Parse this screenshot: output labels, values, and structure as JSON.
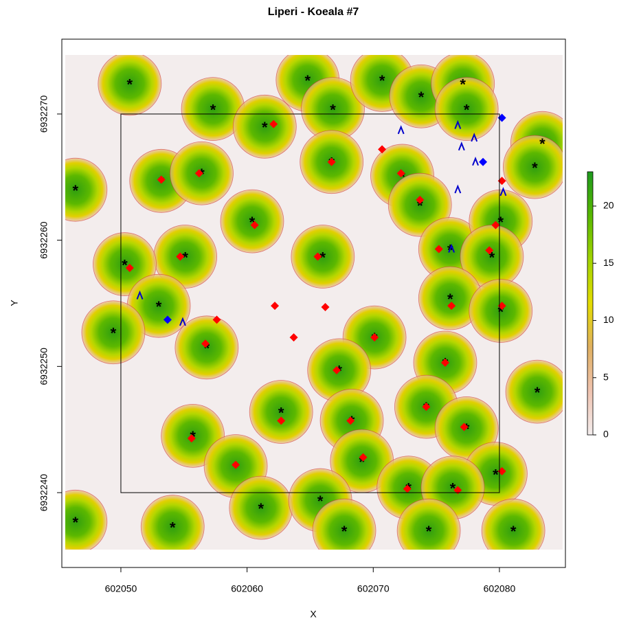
{
  "chart_data": {
    "type": "scatter",
    "title": "Liperi - Koeala #7",
    "x_label": "X",
    "y_label": "Y",
    "xlim": [
      602045.32,
      602085.23
    ],
    "ylim": [
      6932234.07,
      6932275.93
    ],
    "xticks": [
      602050,
      602060,
      602070,
      602080
    ],
    "yticks": [
      6932240,
      6932250,
      6932260,
      6932270
    ],
    "boundary": {
      "x": [
        602050,
        602080
      ],
      "y": [
        6932240,
        6932270
      ]
    },
    "colorbar": {
      "zlim": [
        0,
        23
      ],
      "ticks": [
        0,
        5,
        10,
        15,
        20
      ],
      "colors": [
        "#f3eded",
        "#efc3b0",
        "#e0b060",
        "#e4dc00",
        "#a2d400",
        "#58b800",
        "#1e9a1e"
      ]
    },
    "series": [
      {
        "marker": "asterisk",
        "color": "#000000",
        "x": [
          602050.7,
          602046.4,
          602057.3,
          602061.4,
          602064.8,
          602066.8,
          602070.7,
          602073.8,
          602077.1,
          602077.4,
          602083.4,
          602082.8,
          602053.2,
          602056.4,
          602060.4,
          602055.1,
          602050.3,
          602053.0,
          602049.4,
          602056.8,
          602066.0,
          602066.7,
          602072.3,
          602073.7,
          602076.1,
          602080.1,
          602079.4,
          602076.1,
          602080.1,
          602070.1,
          602067.3,
          602075.7,
          602083.0,
          602062.7,
          602055.7,
          602059.1,
          602068.3,
          602074.2,
          602077.4,
          602069.1,
          602079.7,
          602072.8,
          602076.3,
          602046.4,
          602054.1,
          602061.1,
          602065.8,
          602067.7,
          602074.4,
          602081.1
        ],
        "values": [
          6932272.4,
          6932264.0,
          6932270.4,
          6932269.0,
          6932272.7,
          6932270.4,
          6932272.7,
          6932271.4,
          6932272.4,
          6932270.4,
          6932267.7,
          6932265.8,
          6932264.7,
          6932265.3,
          6932261.5,
          6932258.7,
          6932258.1,
          6932254.8,
          6932252.7,
          6932251.5,
          6932258.7,
          6932266.2,
          6932265.1,
          6932262.8,
          6932259.3,
          6932261.5,
          6932258.7,
          6932255.4,
          6932254.4,
          6932252.3,
          6932249.7,
          6932250.3,
          6932248.0,
          6932246.4,
          6932244.5,
          6932242.1,
          6932245.7,
          6932246.8,
          6932245.1,
          6932242.5,
          6932241.5,
          6932240.4,
          6932240.4,
          6932237.7,
          6932237.3,
          6932238.8,
          6932239.4,
          6932237.0,
          6932237.0,
          6932237.0
        ]
      },
      {
        "marker": "diamond",
        "color": "#ff0000",
        "x": [
          602062.1,
          602053.2,
          602056.2,
          602060.6,
          602050.7,
          602054.7,
          602057.6,
          602062.2,
          602066.2,
          602065.6,
          602066.7,
          602063.7,
          602070.7,
          602072.2,
          602073.7,
          602075.2,
          602079.2,
          602079.7,
          602080.2,
          602076.2,
          602080.2,
          602070.1,
          602067.1,
          602075.7,
          602074.2,
          602077.2,
          602068.2,
          602062.7,
          602055.6,
          602059.1,
          602069.2,
          602056.7,
          602072.7,
          602076.7,
          602080.2
        ],
        "values": [
          6932269.2,
          6932264.8,
          6932265.3,
          6932261.2,
          6932257.8,
          6932258.7,
          6932253.7,
          6932254.8,
          6932254.7,
          6932258.7,
          6932266.2,
          6932252.3,
          6932267.2,
          6932265.3,
          6932263.2,
          6932259.3,
          6932259.2,
          6932261.2,
          6932264.7,
          6932254.8,
          6932254.8,
          6932252.3,
          6932249.7,
          6932250.3,
          6932246.8,
          6932245.2,
          6932245.7,
          6932245.7,
          6932244.3,
          6932242.2,
          6932242.8,
          6932251.8,
          6932240.3,
          6932240.2,
          6932241.7
        ]
      },
      {
        "marker": "diamond",
        "color": "#0000ff",
        "x": [
          602080.2,
          602078.7,
          602053.7
        ],
        "values": [
          6932269.7,
          6932266.2,
          6932253.7
        ]
      },
      {
        "marker": "caret",
        "color": "#0000cc",
        "x": [
          602072.2,
          602076.7,
          602078.0,
          602077.0,
          602078.1,
          602076.7,
          602080.3,
          602076.2,
          602051.5,
          602054.9
        ],
        "values": [
          6932268.7,
          6932269.1,
          6932268.1,
          6932267.4,
          6932266.2,
          6932264.0,
          6932263.8,
          6932259.3,
          6932255.6,
          6932253.5
        ]
      }
    ]
  }
}
